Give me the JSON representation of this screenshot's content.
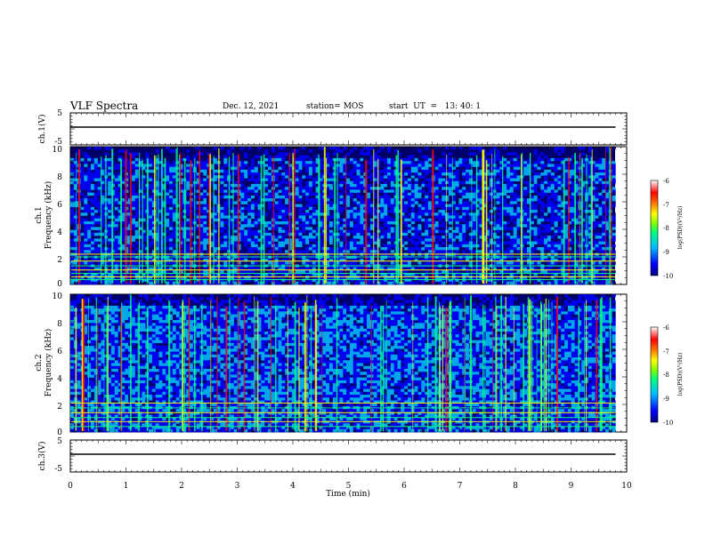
{
  "header": {
    "title": "VLF Spectra",
    "date": "Dec. 12, 2021",
    "station": "station= MOS",
    "start": "start  UT  =   13: 40: 1"
  },
  "chart_data": [
    {
      "type": "line",
      "panel": "ch1-voltage",
      "ylabel": "ch.1(V)",
      "ylim": [
        -5,
        5
      ],
      "yticks": [
        "5",
        "-5"
      ],
      "series": [
        {
          "x": [
            0,
            9.8
          ],
          "y": [
            0,
            0
          ]
        }
      ]
    },
    {
      "type": "heatmap",
      "panel": "ch1-spectrogram",
      "ylabel": "ch.1\nFrequency  (kHz)",
      "xlim": [
        0,
        10
      ],
      "ylim": [
        0,
        10
      ],
      "yticks": [
        "0",
        "2",
        "4",
        "6",
        "8",
        "10"
      ],
      "data_extent_min": 9.8,
      "horizontal_lines_khz": [
        0.35,
        0.55,
        0.8,
        1.05,
        1.35,
        1.7,
        2.0,
        2.2
      ],
      "colorbar": {
        "label": "log(PSD)(V²/Hz)",
        "range": [
          -10,
          -6
        ],
        "ticks": [
          "-6",
          "-7",
          "-8",
          "-9",
          "-10"
        ]
      }
    },
    {
      "type": "heatmap",
      "panel": "ch2-spectrogram",
      "ylabel": "ch.2\nFrequency  (kHz)",
      "xlim": [
        0,
        10
      ],
      "ylim": [
        0,
        10
      ],
      "yticks": [
        "0",
        "2",
        "4",
        "6",
        "8",
        "10"
      ],
      "data_extent_min": 9.8,
      "horizontal_lines_khz": [
        0.4,
        0.75,
        1.05,
        1.4,
        1.75,
        2.1
      ],
      "colorbar": {
        "label": "log(PSD)(V²/Hz)",
        "range": [
          -10,
          -6
        ],
        "ticks": [
          "-6",
          "-7",
          "-8",
          "-9",
          "-10"
        ]
      }
    },
    {
      "type": "line",
      "panel": "ch3-voltage",
      "ylabel": "ch.3(V)",
      "xlabel": "Time  (min)",
      "xlim": [
        0,
        10
      ],
      "ylim": [
        -5,
        5
      ],
      "yticks": [
        "5",
        "-5"
      ],
      "xticks": [
        "0",
        "1",
        "2",
        "3",
        "4",
        "5",
        "6",
        "7",
        "8",
        "9",
        "10"
      ],
      "series": [
        {
          "x": [
            0,
            9.8
          ],
          "y": [
            0,
            0
          ]
        }
      ]
    }
  ],
  "colors": {
    "background": "#000066",
    "colormap": [
      "#00007f",
      "#0000ff",
      "#00bfff",
      "#00ff80",
      "#80ff00",
      "#ffff00",
      "#ff8000",
      "#ff0000",
      "#ffffff"
    ]
  }
}
